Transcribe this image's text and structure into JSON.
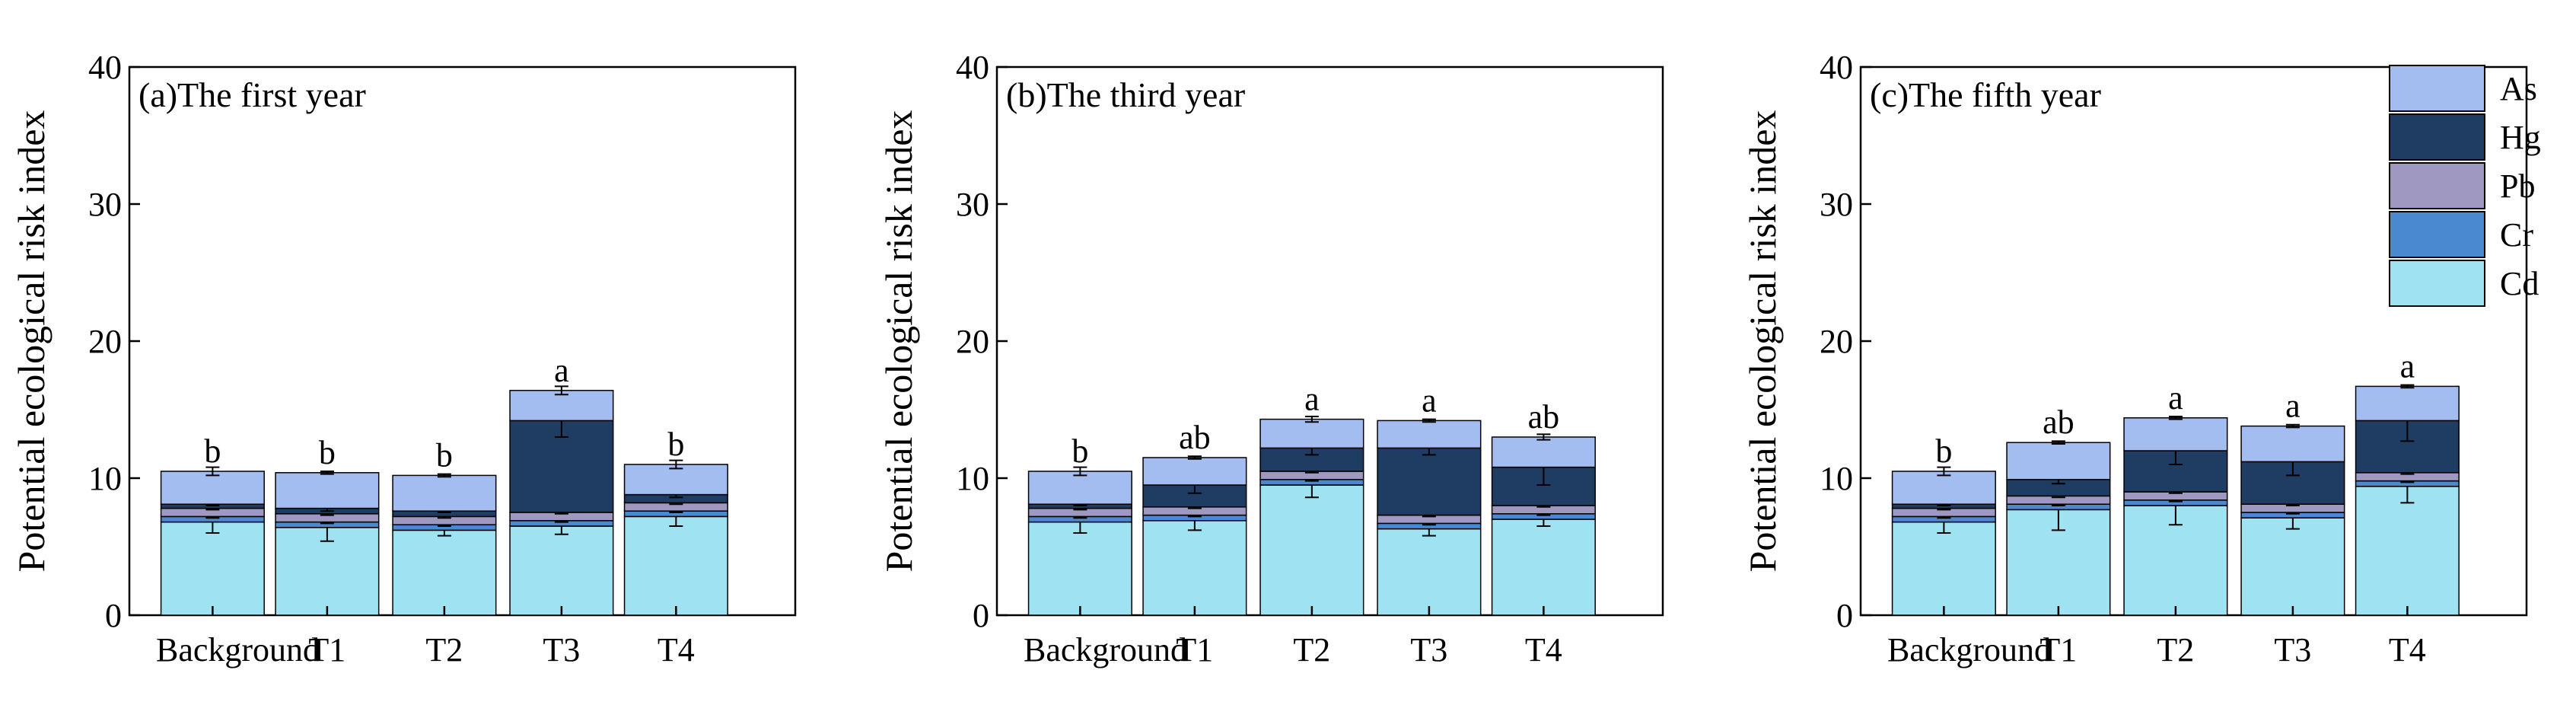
{
  "chart_data": [
    {
      "type": "bar",
      "stacked": true,
      "title": "(a)The first year",
      "ylabel": "Potential ecological risk index",
      "xlabel": "",
      "ylim": [
        0,
        40
      ],
      "yticks": [
        0,
        10,
        20,
        30,
        40
      ],
      "categories": [
        "Background",
        "T1",
        "T2",
        "T3",
        "T4"
      ],
      "series": [
        {
          "name": "Cd",
          "values": [
            6.8,
            6.4,
            6.2,
            6.5,
            7.2
          ],
          "errors": [
            0.8,
            1.0,
            0.4,
            0.6,
            0.7
          ]
        },
        {
          "name": "Cr",
          "values": [
            0.4,
            0.4,
            0.4,
            0.4,
            0.4
          ],
          "errors": [
            0.1,
            0.1,
            0.1,
            0.1,
            0.1
          ]
        },
        {
          "name": "Pb",
          "values": [
            0.6,
            0.6,
            0.6,
            0.6,
            0.6
          ],
          "errors": [
            0.1,
            0.1,
            0.1,
            0.1,
            0.1
          ]
        },
        {
          "name": "Hg",
          "values": [
            0.3,
            0.4,
            0.4,
            6.7,
            0.6
          ],
          "errors": [
            0.1,
            0.2,
            0.1,
            1.2,
            0.2
          ]
        },
        {
          "name": "As",
          "values": [
            2.4,
            2.6,
            2.6,
            2.2,
            2.2
          ],
          "errors": [
            0.3,
            0.1,
            0.1,
            0.3,
            0.3
          ]
        }
      ],
      "significance": [
        "b",
        "b",
        "b",
        "a",
        "b"
      ]
    },
    {
      "type": "bar",
      "stacked": true,
      "title": "(b)The third year",
      "ylabel": "Potential ecological risk index",
      "xlabel": "",
      "ylim": [
        0,
        40
      ],
      "yticks": [
        0,
        10,
        20,
        30,
        40
      ],
      "categories": [
        "Background",
        "T1",
        "T2",
        "T3",
        "T4"
      ],
      "series": [
        {
          "name": "Cd",
          "values": [
            6.8,
            6.9,
            9.5,
            6.3,
            7.0
          ],
          "errors": [
            0.8,
            0.7,
            0.9,
            0.5,
            0.5
          ]
        },
        {
          "name": "Cr",
          "values": [
            0.4,
            0.4,
            0.4,
            0.4,
            0.4
          ],
          "errors": [
            0.1,
            0.1,
            0.1,
            0.1,
            0.1
          ]
        },
        {
          "name": "Pb",
          "values": [
            0.6,
            0.6,
            0.6,
            0.6,
            0.6
          ],
          "errors": [
            0.1,
            0.1,
            0.1,
            0.1,
            0.1
          ]
        },
        {
          "name": "Hg",
          "values": [
            0.3,
            1.6,
            1.7,
            4.9,
            2.8
          ],
          "errors": [
            0.1,
            0.6,
            0.5,
            0.5,
            1.3
          ]
        },
        {
          "name": "As",
          "values": [
            2.4,
            2.0,
            2.1,
            2.0,
            2.2
          ],
          "errors": [
            0.3,
            0.1,
            0.2,
            0.1,
            0.2
          ]
        }
      ],
      "significance": [
        "b",
        "ab",
        "a",
        "a",
        "ab"
      ]
    },
    {
      "type": "bar",
      "stacked": true,
      "title": "(c)The fifth year",
      "ylabel": "Potential ecological risk index",
      "xlabel": "",
      "ylim": [
        0,
        40
      ],
      "yticks": [
        0,
        10,
        20,
        30,
        40
      ],
      "categories": [
        "Background",
        "T1",
        "T2",
        "T3",
        "T4"
      ],
      "series": [
        {
          "name": "Cd",
          "values": [
            6.8,
            7.7,
            8.0,
            7.1,
            9.4
          ],
          "errors": [
            0.8,
            1.5,
            1.4,
            0.8,
            1.2
          ]
        },
        {
          "name": "Cr",
          "values": [
            0.4,
            0.4,
            0.4,
            0.4,
            0.4
          ],
          "errors": [
            0.1,
            0.1,
            0.1,
            0.1,
            0.1
          ]
        },
        {
          "name": "Pb",
          "values": [
            0.6,
            0.6,
            0.6,
            0.6,
            0.6
          ],
          "errors": [
            0.1,
            0.1,
            0.1,
            0.1,
            0.1
          ]
        },
        {
          "name": "Hg",
          "values": [
            0.3,
            1.2,
            3.0,
            3.1,
            3.8
          ],
          "errors": [
            0.1,
            0.3,
            1.0,
            1.0,
            1.5
          ]
        },
        {
          "name": "As",
          "values": [
            2.4,
            2.7,
            2.4,
            2.6,
            2.5
          ],
          "errors": [
            0.3,
            0.1,
            0.1,
            0.1,
            0.1
          ]
        }
      ],
      "significance": [
        "b",
        "ab",
        "a",
        "a",
        "a"
      ]
    }
  ],
  "legend": {
    "placement": "top-right",
    "items": [
      "As",
      "Hg",
      "Pb",
      "Cr",
      "Cd"
    ]
  },
  "colors": {
    "Cd": "#9fe3f2",
    "Cr": "#4a88cf",
    "Pb": "#9f98c0",
    "Hg": "#1f3d63",
    "As": "#a3bdf0",
    "axis": "#000000"
  }
}
